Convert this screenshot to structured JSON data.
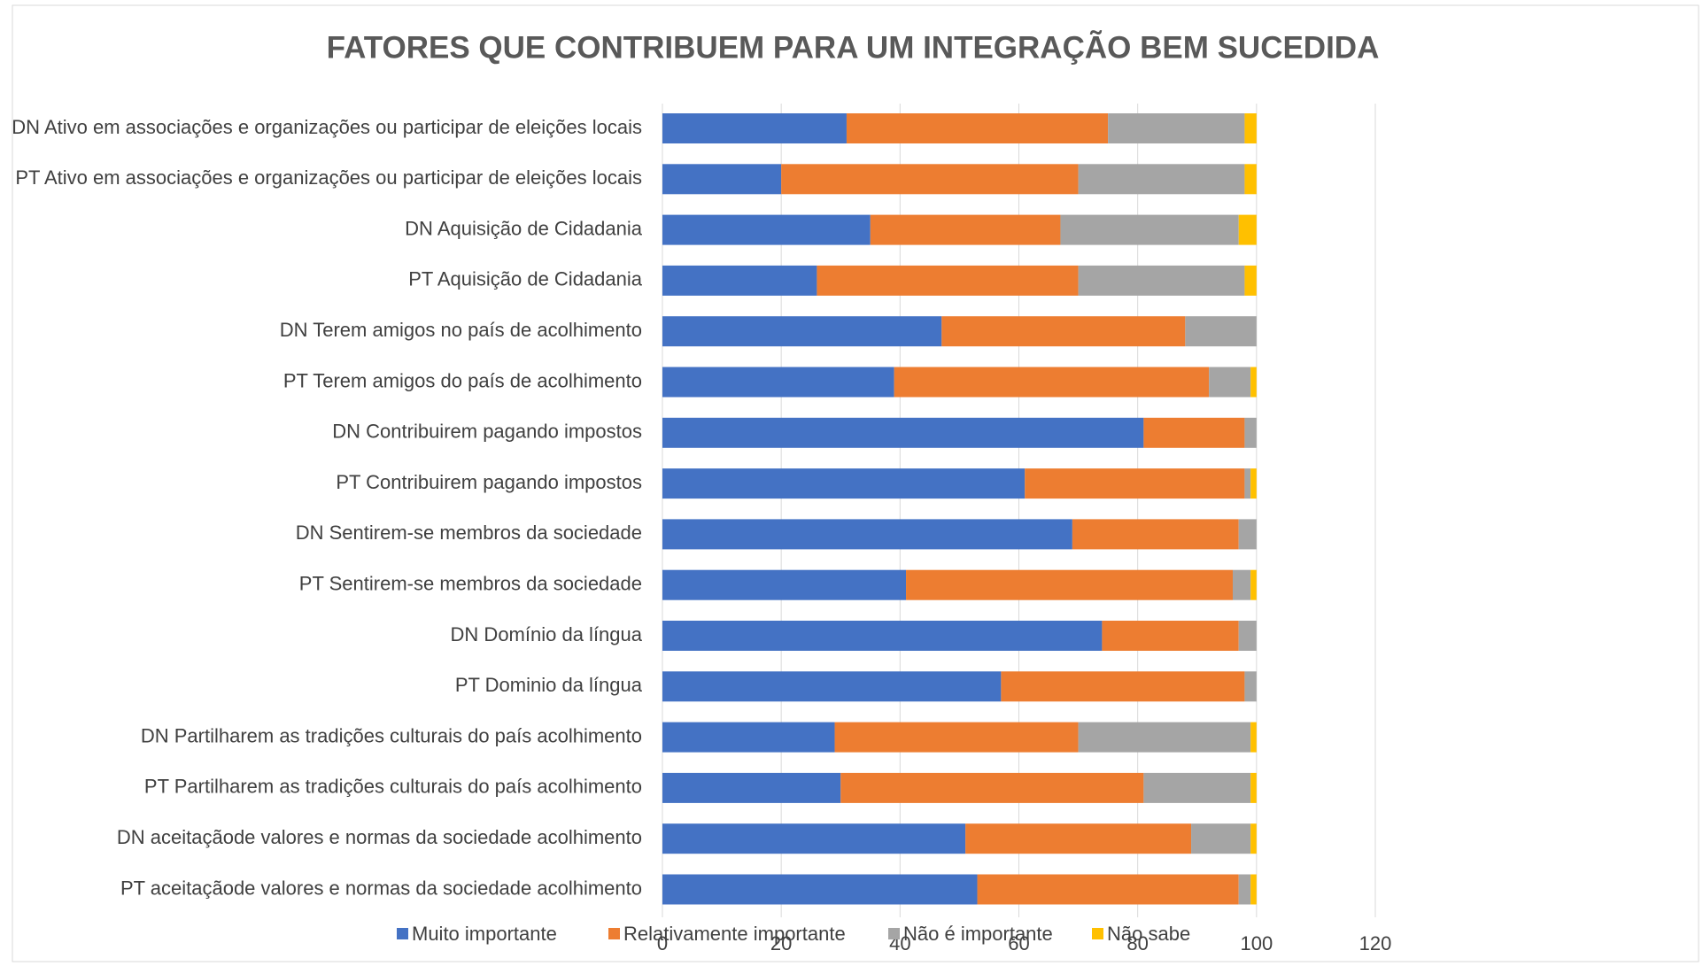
{
  "chart_data": {
    "type": "stacked_barh",
    "title": "FATORES QUE CONTRIBUEM PARA UM INTEGRAÇÃO BEM SUCEDIDA",
    "categories": [
      "DN Ativo em associações e organizações ou participar de eleições locais",
      "PT Ativo em associações e organizações ou participar de eleições locais",
      "DN Aquisição de Cidadania",
      "PT Aquisição de Cidadania",
      "DN Terem amigos no país de acolhimento",
      "PT Terem amigos do país de acolhimento",
      "DN Contribuirem pagando impostos",
      "PT Contribuirem pagando impostos",
      "DN Sentirem-se membros da sociedade",
      "PT Sentirem-se membros da sociedade",
      "DN Domínio da língua",
      "PT Dominio da língua",
      "DN Partilharem as tradições culturais do país acolhimento",
      "PT Partilharem as tradições culturais do país acolhimento",
      "DN aceitaçãode valores e normas da sociedade acolhimento",
      "PT aceitaçãode valores e normas da sociedade acolhimento"
    ],
    "series": [
      {
        "name": "Muito importante",
        "color": "#4472c4",
        "values": [
          31,
          20,
          35,
          26,
          47,
          39,
          81,
          61,
          69,
          41,
          74,
          57,
          29,
          30,
          51,
          53
        ]
      },
      {
        "name": "Relativamente importante",
        "color": "#ed7d31",
        "values": [
          44,
          50,
          32,
          44,
          41,
          53,
          17,
          37,
          28,
          55,
          23,
          41,
          41,
          51,
          38,
          44
        ]
      },
      {
        "name": "Não é importante",
        "color": "#a5a5a5",
        "values": [
          23,
          28,
          30,
          28,
          12,
          7,
          2,
          1,
          3,
          3,
          3,
          2,
          29,
          18,
          10,
          2
        ]
      },
      {
        "name": "Não sabe",
        "color": "#ffc000",
        "values": [
          2,
          2,
          3,
          2,
          0,
          1,
          0,
          1,
          0,
          1,
          0,
          0,
          1,
          1,
          1,
          1
        ]
      }
    ],
    "xlim": [
      0,
      120
    ],
    "xticks": [
      0,
      20,
      40,
      60,
      80,
      100,
      120
    ],
    "grid": true,
    "legend": "bottom"
  }
}
